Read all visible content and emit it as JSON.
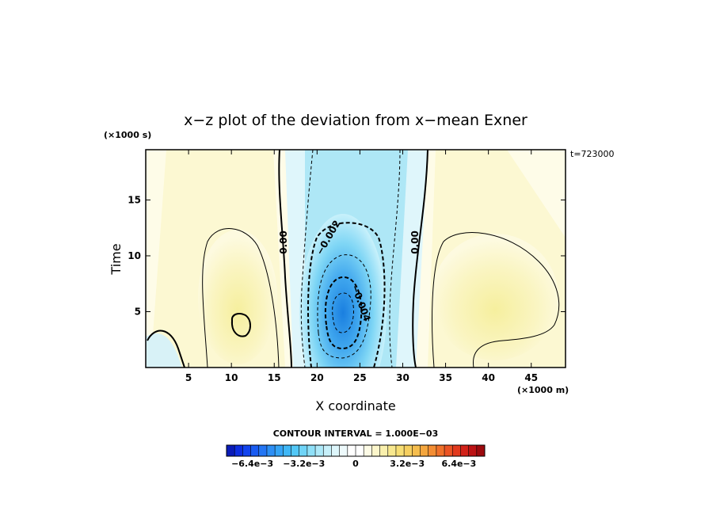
{
  "chart_data": {
    "type": "heatmap",
    "title": "x−z plot of the deviation from x−mean Exner",
    "xlabel": "X coordinate",
    "ylabel": "Time",
    "x_unit": "(×1000 m)",
    "y_unit": "(×1000 s)",
    "time_stamp": "t=723000",
    "contour_interval_text": "CONTOUR INTERVAL = 1.000E−03",
    "x_ticks": [
      "5",
      "10",
      "15",
      "20",
      "25",
      "30",
      "35",
      "40",
      "45"
    ],
    "x_tick_values": [
      5,
      10,
      15,
      20,
      25,
      30,
      35,
      40,
      45
    ],
    "y_ticks": [
      "5",
      "10",
      "15"
    ],
    "y_tick_values": [
      5,
      10,
      15
    ],
    "xlim": [
      0,
      49
    ],
    "ylim": [
      0,
      19.5
    ],
    "contour_labels": [
      "0.00",
      "−0.002",
      "−0.004",
      "0.00"
    ],
    "colorbar": {
      "range": [
        -0.008,
        0.008
      ],
      "tick_labels": [
        "−6.4e−3",
        "−3.2e−3",
        "0",
        "3.2e−3",
        "6.4e−3"
      ],
      "tick_values": [
        -0.0064,
        -0.0032,
        0,
        0.0032,
        0.0064
      ]
    },
    "field_features": [
      {
        "kind": "minimum",
        "x": 24,
        "y": 5,
        "value": -0.005
      },
      {
        "kind": "maximum",
        "x": 11,
        "y": 4.5,
        "value": 0.001
      },
      {
        "kind": "maximum",
        "x": 42,
        "y": 5,
        "value": 0.001
      }
    ]
  }
}
